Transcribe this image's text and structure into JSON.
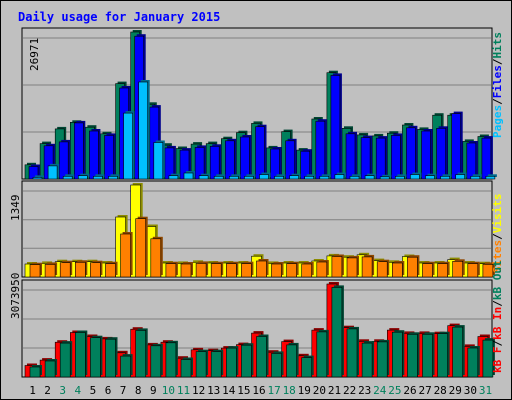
{
  "title": "Daily usage for January 2015",
  "colors": {
    "background": "#c0c0c0",
    "panel": "#c0c0c0",
    "hits": "#00805c",
    "files": "#0000ff",
    "pages": "#00c0ff",
    "visits": "#ffff00",
    "sites": "#ff8000",
    "kb_in": "#ff0000",
    "kb_out": "#00805c",
    "title": "#0000ff",
    "weekend_label": "#00805c",
    "weekday_label": "#000000"
  },
  "chart_data": [
    {
      "type": "bar",
      "name": "hits-files-pages",
      "ymax_label": "26971",
      "ymax": 26971,
      "legend": [
        {
          "label": "Pages",
          "color": "#00c0ff"
        },
        {
          "label": "Files",
          "color": "#0000ff"
        },
        {
          "label": "Hits",
          "color": "#00805c"
        }
      ],
      "categories": [
        "1",
        "2",
        "3",
        "4",
        "5",
        "6",
        "7",
        "8",
        "9",
        "10",
        "11",
        "12",
        "13",
        "14",
        "15",
        "16",
        "17",
        "18",
        "19",
        "20",
        "21",
        "22",
        "23",
        "24",
        "25",
        "26",
        "27",
        "28",
        "29",
        "30",
        "31"
      ],
      "series": [
        {
          "name": "Hits",
          "values": [
            2600,
            6500,
            9200,
            10400,
            9500,
            8300,
            17500,
            26971,
            13700,
            6200,
            5600,
            6400,
            6500,
            7400,
            8500,
            10200,
            5700,
            8700,
            5300,
            11000,
            19500,
            9300,
            8100,
            7900,
            8400,
            9900,
            9100,
            11700,
            11700,
            6900,
            7800
          ]
        },
        {
          "name": "Files",
          "values": [
            2300,
            6100,
            6800,
            10300,
            8800,
            8000,
            16700,
            26200,
            13200,
            5700,
            5300,
            5800,
            6000,
            7000,
            7700,
            9600,
            5500,
            7000,
            5100,
            10600,
            19000,
            8300,
            7600,
            7500,
            8000,
            9400,
            8800,
            9300,
            12000,
            6600,
            7500
          ]
        },
        {
          "name": "Pages",
          "values": [
            300,
            2400,
            500,
            600,
            500,
            500,
            12100,
            17800,
            6700,
            600,
            1100,
            600,
            500,
            500,
            500,
            800,
            500,
            600,
            500,
            500,
            800,
            500,
            600,
            400,
            500,
            800,
            600,
            500,
            800,
            500,
            500
          ]
        }
      ]
    },
    {
      "type": "bar",
      "name": "visits-sites",
      "ymax_label": "1349",
      "ymax": 1349,
      "legend": [
        {
          "label": "Sites",
          "color": "#ff8000"
        },
        {
          "label": "Visits",
          "color": "#ffff00"
        }
      ],
      "categories": [
        "1",
        "2",
        "3",
        "4",
        "5",
        "6",
        "7",
        "8",
        "9",
        "10",
        "11",
        "12",
        "13",
        "14",
        "15",
        "16",
        "17",
        "18",
        "19",
        "20",
        "21",
        "22",
        "23",
        "24",
        "25",
        "26",
        "27",
        "28",
        "29",
        "30",
        "31"
      ],
      "series": [
        {
          "name": "Visits",
          "values": [
            190,
            200,
            225,
            225,
            225,
            205,
            880,
            1349,
            740,
            205,
            200,
            215,
            205,
            205,
            205,
            305,
            200,
            205,
            205,
            235,
            310,
            290,
            325,
            240,
            215,
            300,
            205,
            205,
            255,
            205,
            195
          ]
        },
        {
          "name": "Sites",
          "values": [
            180,
            185,
            210,
            215,
            210,
            195,
            630,
            855,
            560,
            195,
            190,
            200,
            195,
            195,
            195,
            235,
            190,
            195,
            190,
            220,
            300,
            280,
            295,
            225,
            205,
            290,
            195,
            195,
            230,
            195,
            185
          ]
        }
      ]
    },
    {
      "type": "bar",
      "name": "kbf-kbin-kbout",
      "ymax_label": "3073950",
      "ymax": 3073950,
      "legend": [
        {
          "label": "kB F",
          "color": "#ff0000"
        },
        {
          "label": "kB In",
          "color": "#ff0000"
        },
        {
          "label": "kB Out",
          "color": "#00805c"
        }
      ],
      "categories": [
        "1",
        "2",
        "3",
        "4",
        "5",
        "6",
        "7",
        "8",
        "9",
        "10",
        "11",
        "12",
        "13",
        "14",
        "15",
        "16",
        "17",
        "18",
        "19",
        "20",
        "21",
        "22",
        "23",
        "24",
        "25",
        "26",
        "27",
        "28",
        "29",
        "30",
        "31"
      ],
      "series": [
        {
          "name": "kB In",
          "values": [
            380000,
            560000,
            1150000,
            1470000,
            1340000,
            1260000,
            800000,
            1580000,
            1060000,
            1150000,
            620000,
            900000,
            870000,
            955000,
            1070000,
            1450000,
            820000,
            1170000,
            700000,
            1550000,
            3073950,
            1630000,
            1180000,
            1180000,
            1550000,
            1440000,
            1440000,
            1430000,
            1700000,
            1010000,
            1340000
          ]
        },
        {
          "name": "kB Out",
          "values": [
            330000,
            530000,
            1120000,
            1470000,
            1300000,
            1250000,
            690000,
            1540000,
            1030000,
            1130000,
            580000,
            840000,
            840000,
            955000,
            1050000,
            1340000,
            780000,
            1060000,
            640000,
            1490000,
            2960000,
            1590000,
            1120000,
            1160000,
            1480000,
            1410000,
            1410000,
            1430000,
            1650000,
            960000,
            1220000
          ]
        }
      ]
    }
  ]
}
